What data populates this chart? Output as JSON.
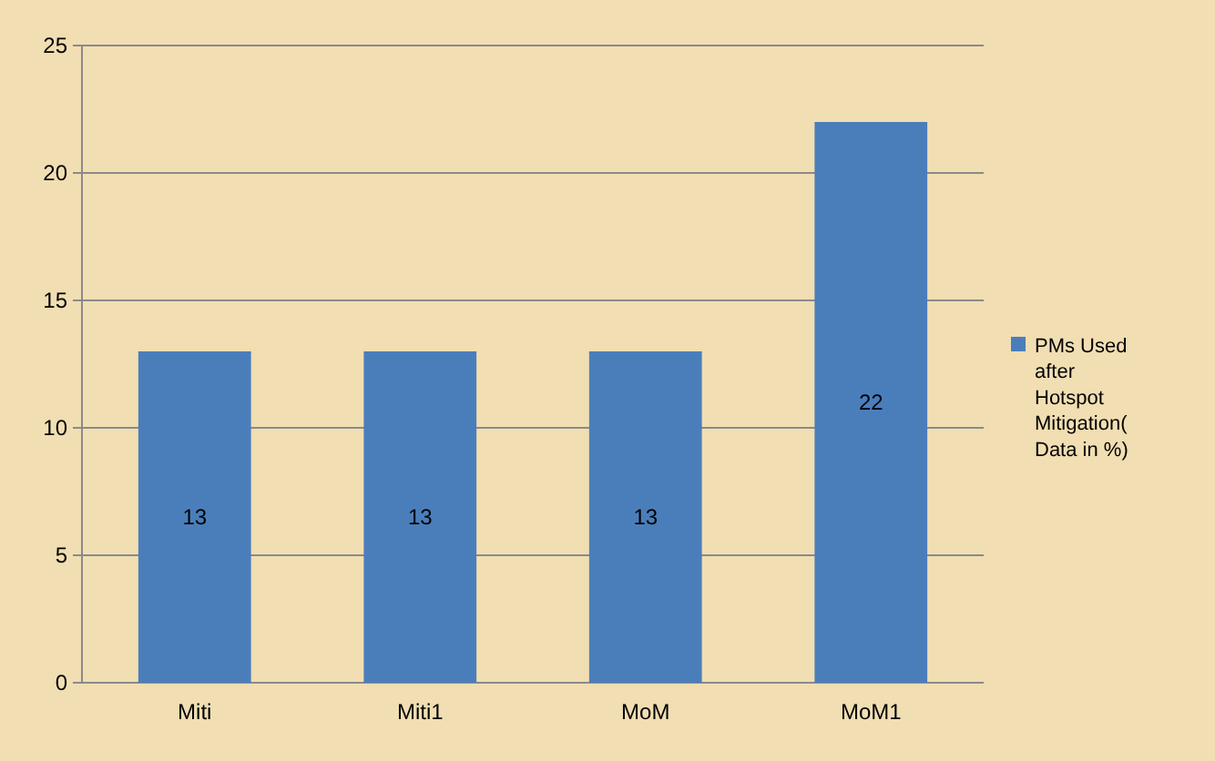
{
  "chart_data": {
    "type": "bar",
    "categories": [
      "Miti",
      "Miti1",
      "MoM",
      "MoM1"
    ],
    "series": [
      {
        "name": "PMs Used after Hotspot Mitigation( Data in %)",
        "color": "#4a7ebb",
        "values": [
          13,
          13,
          13,
          22
        ]
      }
    ],
    "ylim": [
      0,
      25
    ],
    "yticks": [
      0,
      5,
      10,
      15,
      20,
      25
    ],
    "grid": "y",
    "legend": "right",
    "data_labels": true
  }
}
